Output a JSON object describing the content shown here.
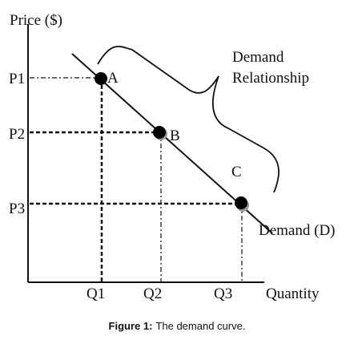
{
  "axes": {
    "y_label": "Price ($)",
    "x_label": "Quantity"
  },
  "points": [
    {
      "label": "A",
      "price": "P1",
      "quantity": "Q1"
    },
    {
      "label": "B",
      "price": "P2",
      "quantity": "Q2"
    },
    {
      "label": "C",
      "price": "P3",
      "quantity": "Q3"
    }
  ],
  "curve_label": "Demand (D)",
  "annotation": [
    "Demand",
    "Relationship"
  ],
  "caption": {
    "label": "Figure 1:",
    "text": "The demand curve."
  }
}
